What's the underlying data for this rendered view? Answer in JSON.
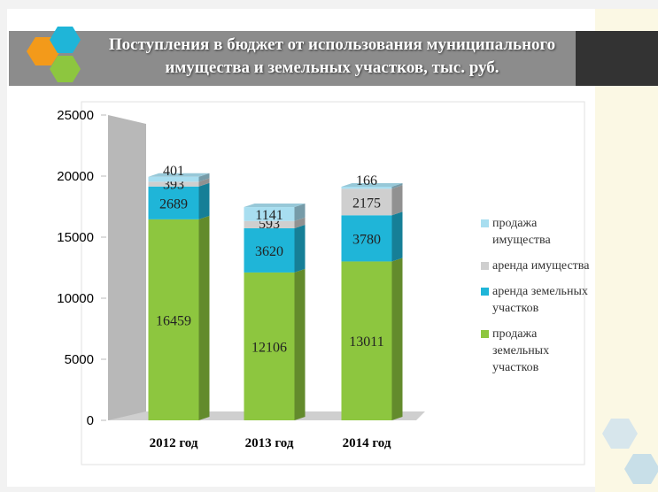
{
  "chart_data": {
    "type": "stacked-bar-3d",
    "title": "Поступления в бюджет от использования муниципального имущества и земельных участков, тыс. руб.",
    "categories": [
      "2012 год",
      "2013 год",
      "2014 год"
    ],
    "series": [
      {
        "name": "продажа земельных участков",
        "color": "#8dc63f",
        "values": [
          16459,
          12106,
          13011
        ]
      },
      {
        "name": "аренда земельных участков",
        "color": "#1fb5d8",
        "values": [
          2689,
          3620,
          3780
        ]
      },
      {
        "name": "аренда имущества",
        "color": "#cfcfcf",
        "values": [
          393,
          593,
          2175
        ]
      },
      {
        "name": "продажа имущества",
        "color": "#a8def0",
        "values": [
          401,
          1141,
          166
        ]
      }
    ],
    "ylim": [
      0,
      25000
    ],
    "yticks": [
      0,
      5000,
      10000,
      15000,
      20000,
      25000
    ]
  }
}
